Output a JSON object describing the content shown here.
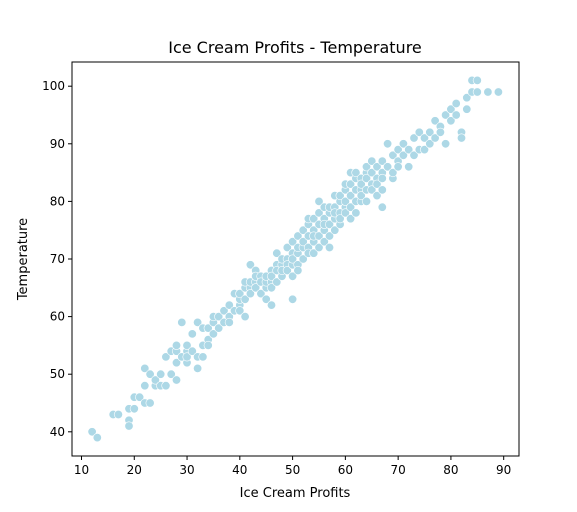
{
  "chart_data": {
    "type": "scatter",
    "title": "Ice Cream Profits - Temperature",
    "xlabel": "Ice Cream Profits",
    "ylabel": "Temperature",
    "xlim": [
      8.2,
      92.9
    ],
    "ylim": [
      35.8,
      104.2
    ],
    "xticks": [
      10,
      20,
      30,
      40,
      50,
      60,
      70,
      80,
      90
    ],
    "yticks": [
      40,
      50,
      60,
      70,
      80,
      90,
      100
    ],
    "grid": false,
    "marker_color": "#add8e6",
    "marker_edge_color": "#ffffff",
    "x": [
      12,
      13,
      16,
      17,
      19,
      19,
      19,
      20,
      20,
      21,
      22,
      22,
      22,
      23,
      23,
      24,
      24,
      25,
      25,
      26,
      26,
      27,
      27,
      28,
      28,
      28,
      28,
      29,
      29,
      30,
      30,
      30,
      30,
      31,
      31,
      32,
      32,
      32,
      33,
      33,
      33,
      34,
      34,
      34,
      35,
      35,
      35,
      36,
      36,
      37,
      37,
      38,
      38,
      38,
      39,
      39,
      40,
      40,
      40,
      40,
      41,
      41,
      41,
      41,
      42,
      42,
      42,
      42,
      43,
      43,
      43,
      43,
      44,
      44,
      44,
      45,
      45,
      45,
      45,
      46,
      46,
      46,
      46,
      47,
      47,
      47,
      47,
      48,
      48,
      48,
      48,
      49,
      49,
      49,
      49,
      50,
      50,
      50,
      50,
      50,
      51,
      51,
      51,
      51,
      51,
      52,
      52,
      52,
      52,
      53,
      53,
      53,
      53,
      53,
      54,
      54,
      54,
      54,
      54,
      55,
      55,
      55,
      55,
      55,
      56,
      56,
      56,
      56,
      56,
      57,
      57,
      57,
      57,
      57,
      58,
      58,
      58,
      58,
      58,
      59,
      59,
      59,
      59,
      59,
      60,
      60,
      60,
      60,
      60,
      61,
      61,
      61,
      61,
      61,
      62,
      62,
      62,
      62,
      62,
      63,
      63,
      63,
      63,
      63,
      64,
      64,
      64,
      64,
      64,
      65,
      65,
      65,
      65,
      66,
      66,
      66,
      66,
      67,
      67,
      67,
      67,
      68,
      68,
      68,
      69,
      69,
      69,
      70,
      70,
      70,
      71,
      71,
      72,
      72,
      73,
      73,
      74,
      74,
      75,
      75,
      76,
      76,
      77,
      77,
      78,
      78,
      79,
      79,
      80,
      80,
      80,
      81,
      81,
      82,
      82,
      83,
      83,
      84,
      84,
      85,
      85,
      87,
      89,
      50,
      46,
      67
    ],
    "y": [
      40,
      39,
      43,
      43,
      42,
      41,
      44,
      46,
      44,
      46,
      45,
      48,
      51,
      45,
      50,
      48,
      49,
      48,
      50,
      53,
      48,
      50,
      54,
      49,
      52,
      54,
      55,
      53,
      59,
      54,
      52,
      55,
      53,
      54,
      57,
      51,
      53,
      59,
      58,
      55,
      53,
      56,
      58,
      55,
      59,
      60,
      57,
      60,
      58,
      59,
      61,
      60,
      62,
      59,
      64,
      61,
      62,
      63,
      64,
      61,
      60,
      63,
      65,
      66,
      65,
      66,
      69,
      64,
      68,
      66,
      67,
      65,
      64,
      67,
      66,
      63,
      65,
      66,
      67,
      68,
      66,
      65,
      67,
      71,
      69,
      66,
      68,
      69,
      67,
      70,
      68,
      70,
      69,
      72,
      68,
      69,
      71,
      73,
      70,
      67,
      71,
      72,
      74,
      69,
      68,
      70,
      72,
      73,
      75,
      72,
      74,
      76,
      71,
      77,
      73,
      75,
      77,
      71,
      74,
      76,
      78,
      72,
      74,
      80,
      73,
      75,
      77,
      79,
      76,
      72,
      78,
      74,
      79,
      76,
      77,
      81,
      75,
      79,
      78,
      80,
      76,
      78,
      81,
      77,
      79,
      80,
      82,
      78,
      83,
      85,
      77,
      81,
      79,
      83,
      80,
      84,
      82,
      78,
      85,
      82,
      80,
      84,
      81,
      83,
      85,
      82,
      86,
      80,
      84,
      87,
      83,
      85,
      82,
      84,
      86,
      81,
      83,
      85,
      87,
      79,
      84,
      86,
      90,
      86,
      84,
      88,
      85,
      87,
      89,
      86,
      88,
      90,
      86,
      89,
      88,
      91,
      89,
      92,
      89,
      91,
      92,
      90,
      94,
      91,
      93,
      92,
      95,
      90,
      96,
      94,
      96,
      95,
      97,
      92,
      91,
      98,
      96,
      99,
      101,
      99,
      101,
      99,
      99,
      63,
      62,
      82
    ]
  }
}
